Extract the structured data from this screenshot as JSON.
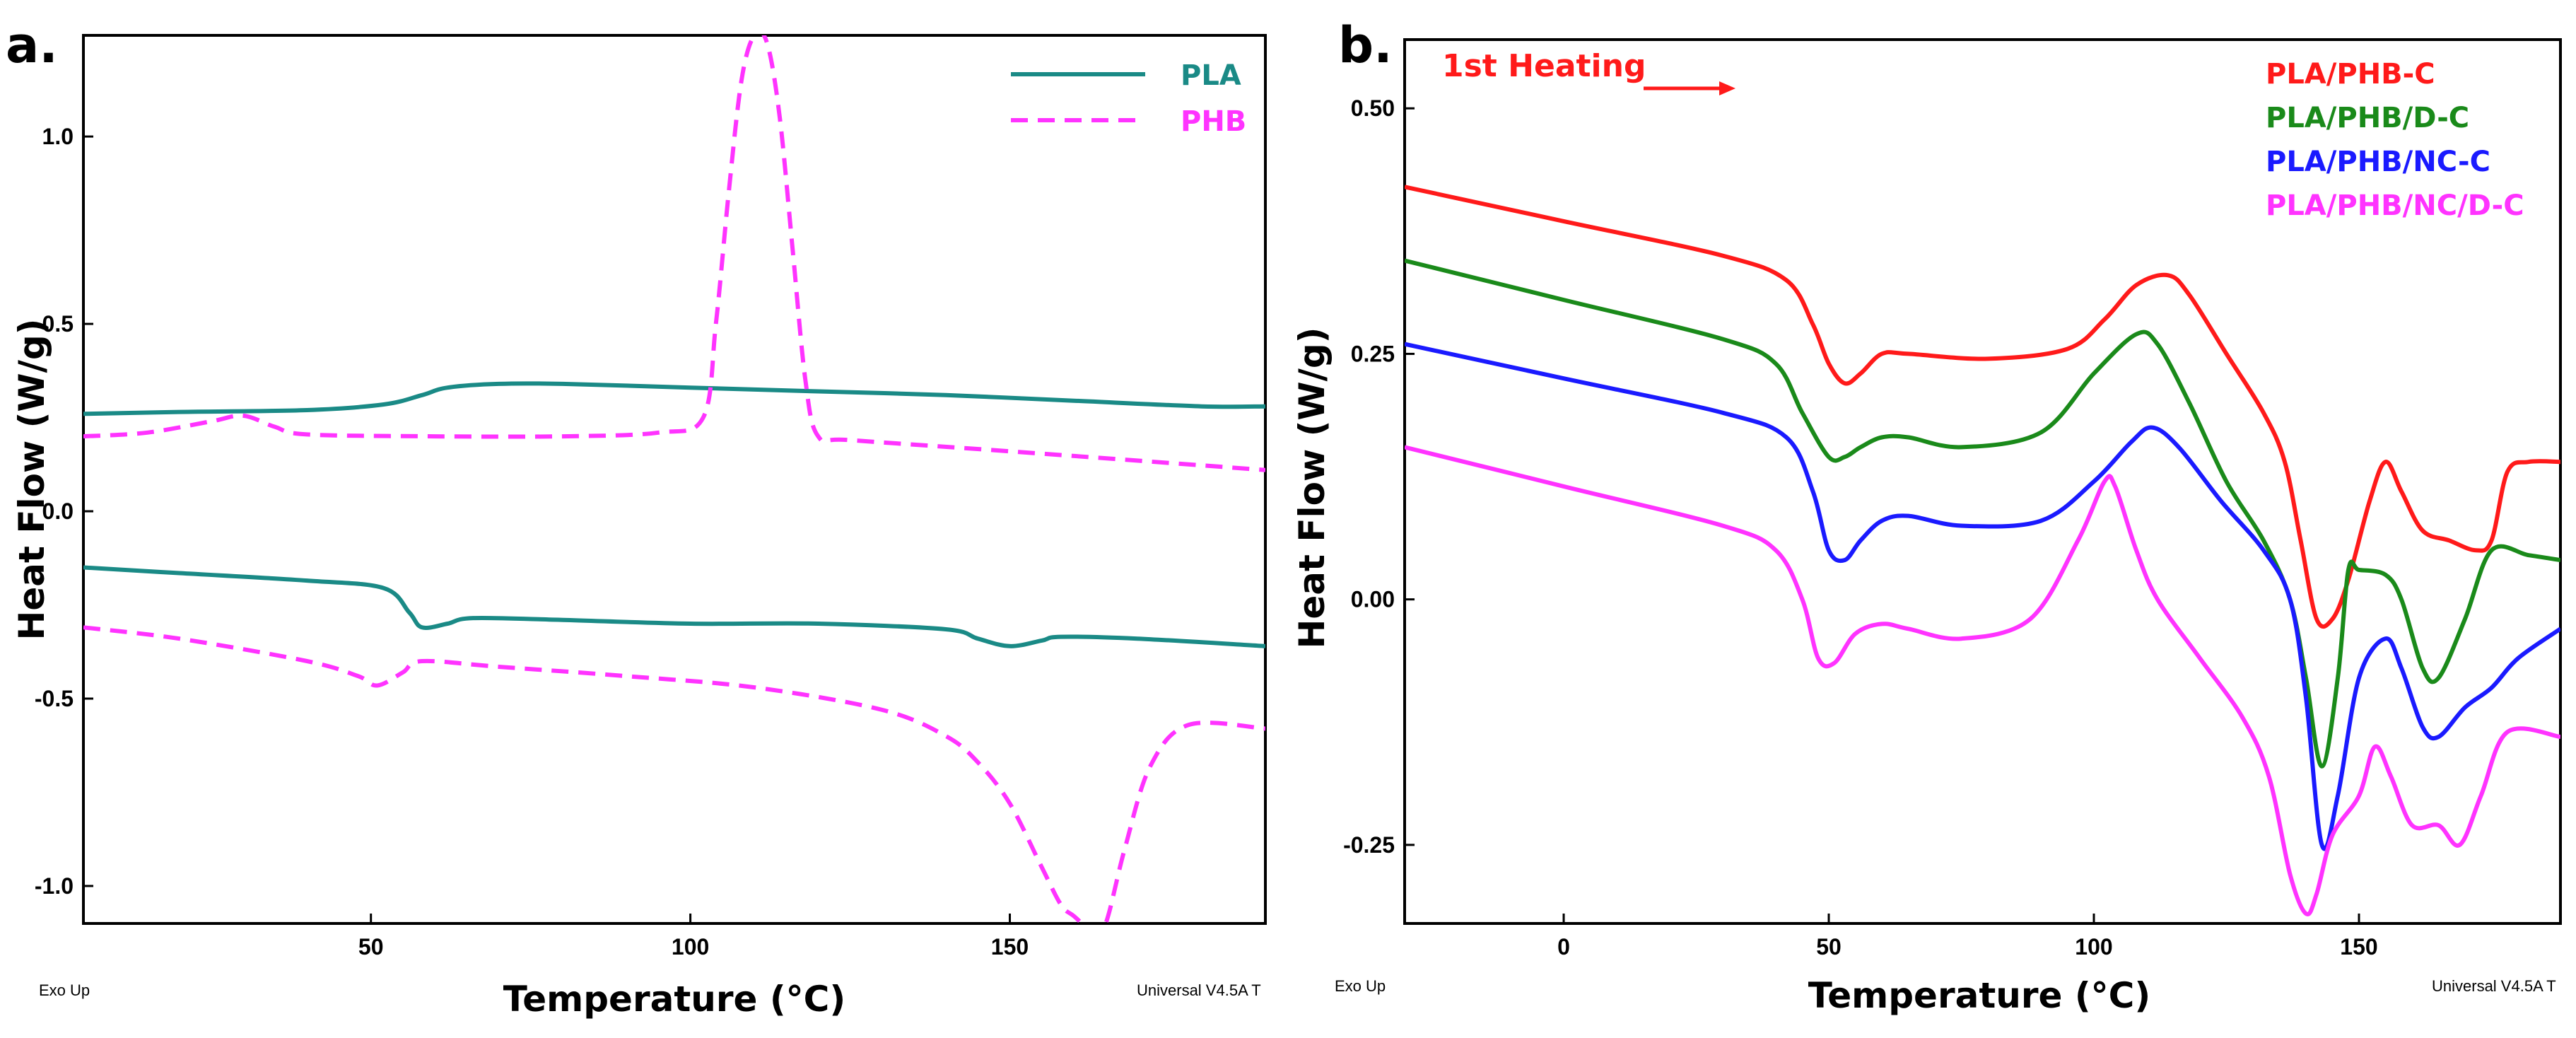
{
  "chart_data": [
    {
      "panel": "a.",
      "type": "line",
      "xlabel": "Temperature (°C)",
      "ylabel": "Heat Flow (W/g)",
      "xlim": [
        5,
        190
      ],
      "ylim": [
        -1.1,
        1.27
      ],
      "xticks": [
        50,
        100,
        150
      ],
      "yticks": [
        -1.0,
        -0.5,
        0.0,
        0.5,
        1.0
      ],
      "xtick_labels": [
        "50",
        "100",
        "150"
      ],
      "ytick_labels": [
        "-1.0",
        "-0.5",
        "0.0",
        "0.5",
        "1.0"
      ],
      "footer_left": "Exo Up",
      "footer_right": "Universal V4.5A T",
      "legend": [
        {
          "name": "PLA",
          "color": "#1a8a86",
          "dash": "solid"
        },
        {
          "name": "PHB",
          "color": "#ff33ff",
          "dash": "dashed"
        }
      ],
      "series": [
        {
          "name": "PLA",
          "color": "#1a8a86",
          "dash": "solid",
          "x": [
            5,
            20,
            40,
            52,
            58,
            62,
            70,
            80,
            100,
            120,
            140,
            160,
            180,
            190
          ],
          "y": [
            0.26,
            0.265,
            0.27,
            0.285,
            0.31,
            0.33,
            0.34,
            0.34,
            0.33,
            0.32,
            0.31,
            0.295,
            0.28,
            0.28
          ]
        },
        {
          "name": "PHB",
          "color": "#ff33ff",
          "dash": "dashed",
          "x": [
            5,
            15,
            25,
            30,
            35,
            40,
            60,
            80,
            95,
            102,
            104,
            106,
            108,
            110,
            112,
            114,
            116,
            118,
            120,
            125,
            150,
            190
          ],
          "y": [
            0.2,
            0.21,
            0.24,
            0.255,
            0.225,
            0.205,
            0.2,
            0.2,
            0.21,
            0.25,
            0.5,
            0.85,
            1.15,
            1.27,
            1.25,
            1.05,
            0.7,
            0.35,
            0.2,
            0.19,
            0.16,
            0.11
          ]
        },
        {
          "name": "PLA",
          "color": "#1a8a86",
          "dash": "solid",
          "x": [
            5,
            20,
            40,
            52,
            56,
            58,
            62,
            66,
            80,
            100,
            120,
            140,
            145,
            150,
            155,
            158,
            170,
            190
          ],
          "y": [
            -0.15,
            -0.165,
            -0.185,
            -0.205,
            -0.27,
            -0.31,
            -0.3,
            -0.285,
            -0.29,
            -0.3,
            -0.3,
            -0.315,
            -0.34,
            -0.36,
            -0.345,
            -0.335,
            -0.34,
            -0.36
          ]
        },
        {
          "name": "PHB",
          "color": "#ff33ff",
          "dash": "dashed",
          "x": [
            5,
            20,
            40,
            48,
            51,
            55,
            58,
            70,
            90,
            110,
            130,
            140,
            145,
            150,
            155,
            158,
            160,
            163,
            165,
            168,
            172,
            178,
            190
          ],
          "y": [
            -0.31,
            -0.34,
            -0.4,
            -0.44,
            -0.465,
            -0.43,
            -0.4,
            -0.415,
            -0.44,
            -0.47,
            -0.53,
            -0.6,
            -0.67,
            -0.78,
            -0.95,
            -1.05,
            -1.08,
            -1.12,
            -1.1,
            -0.9,
            -0.68,
            -0.57,
            -0.58
          ]
        }
      ]
    },
    {
      "panel": "b.",
      "type": "line",
      "annotation": "1st Heating",
      "xlabel": "Temperature (°C)",
      "ylabel": "Heat Flow (W/g)",
      "xlim": [
        -30,
        188
      ],
      "ylim": [
        -0.33,
        0.57
      ],
      "xticks": [
        0,
        50,
        100,
        150
      ],
      "yticks": [
        -0.25,
        0.0,
        0.25,
        0.5
      ],
      "xtick_labels": [
        "0",
        "50",
        "100",
        "150"
      ],
      "ytick_labels": [
        "-0.25",
        "0.00",
        "0.25",
        "0.50"
      ],
      "footer_left": "Exo Up",
      "footer_right": "Universal V4.5A T",
      "legend": [
        {
          "name": "PLA/PHB-C",
          "color": "#ff1a1a"
        },
        {
          "name": "PLA/PHB/D-C",
          "color": "#1a8a1a"
        },
        {
          "name": "PLA/PHB/NC-C",
          "color": "#1a1aff"
        },
        {
          "name": "PLA/PHB/NC/D-C",
          "color": "#ff33ff"
        }
      ],
      "series": [
        {
          "name": "PLA/PHB-C",
          "color": "#ff1a1a",
          "x": [
            -30,
            0,
            30,
            42,
            47,
            50,
            53,
            56,
            60,
            65,
            80,
            95,
            102,
            108,
            114,
            118,
            125,
            132,
            136,
            139,
            142,
            145,
            148,
            152,
            155,
            158,
            162,
            167,
            172,
            175,
            178,
            182,
            188
          ],
          "y": [
            0.42,
            0.385,
            0.35,
            0.325,
            0.28,
            0.24,
            0.22,
            0.23,
            0.25,
            0.25,
            0.245,
            0.255,
            0.285,
            0.32,
            0.33,
            0.31,
            0.25,
            0.19,
            0.14,
            0.06,
            -0.02,
            -0.02,
            0.02,
            0.1,
            0.14,
            0.11,
            0.07,
            0.06,
            0.05,
            0.06,
            0.13,
            0.14,
            0.14
          ]
        },
        {
          "name": "PLA/PHB/D-C",
          "color": "#1a8a1a",
          "x": [
            -30,
            0,
            30,
            40,
            45,
            50,
            53,
            56,
            60,
            65,
            75,
            90,
            100,
            108,
            112,
            118,
            125,
            132,
            137,
            140,
            143,
            146,
            148,
            150,
            155,
            158,
            162,
            165,
            170,
            175,
            182,
            188
          ],
          "y": [
            0.345,
            0.305,
            0.265,
            0.24,
            0.19,
            0.145,
            0.145,
            0.155,
            0.165,
            0.165,
            0.155,
            0.17,
            0.23,
            0.27,
            0.26,
            0.2,
            0.12,
            0.06,
            0.0,
            -0.08,
            -0.17,
            -0.08,
            0.03,
            0.03,
            0.025,
            0.0,
            -0.07,
            -0.08,
            -0.02,
            0.05,
            0.045,
            0.04
          ]
        },
        {
          "name": "PLA/PHB/NC-C",
          "color": "#1a1aff",
          "x": [
            -30,
            0,
            30,
            42,
            47,
            50,
            53,
            56,
            60,
            65,
            75,
            90,
            100,
            107,
            111,
            116,
            124,
            132,
            137,
            140,
            143,
            146,
            150,
            155,
            158,
            162,
            165,
            170,
            175,
            180,
            188
          ],
          "y": [
            0.26,
            0.225,
            0.19,
            0.165,
            0.11,
            0.05,
            0.04,
            0.06,
            0.08,
            0.085,
            0.075,
            0.08,
            0.12,
            0.16,
            0.175,
            0.155,
            0.1,
            0.05,
            0.0,
            -0.1,
            -0.25,
            -0.2,
            -0.08,
            -0.04,
            -0.07,
            -0.13,
            -0.14,
            -0.11,
            -0.09,
            -0.06,
            -0.03
          ]
        },
        {
          "name": "PLA/PHB/NC/D-C",
          "color": "#ff33ff",
          "x": [
            -30,
            0,
            30,
            40,
            45,
            48,
            51,
            55,
            60,
            65,
            75,
            88,
            97,
            102,
            104,
            108,
            112,
            120,
            128,
            133,
            137,
            140,
            142,
            145,
            150,
            153,
            156,
            160,
            165,
            169,
            173,
            178,
            188
          ],
          "y": [
            0.155,
            0.115,
            0.075,
            0.05,
            0.0,
            -0.06,
            -0.065,
            -0.035,
            -0.025,
            -0.03,
            -0.04,
            -0.02,
            0.06,
            0.12,
            0.115,
            0.05,
            0.0,
            -0.06,
            -0.12,
            -0.18,
            -0.28,
            -0.32,
            -0.3,
            -0.24,
            -0.2,
            -0.15,
            -0.18,
            -0.23,
            -0.23,
            -0.25,
            -0.2,
            -0.135,
            -0.14
          ]
        }
      ]
    }
  ]
}
